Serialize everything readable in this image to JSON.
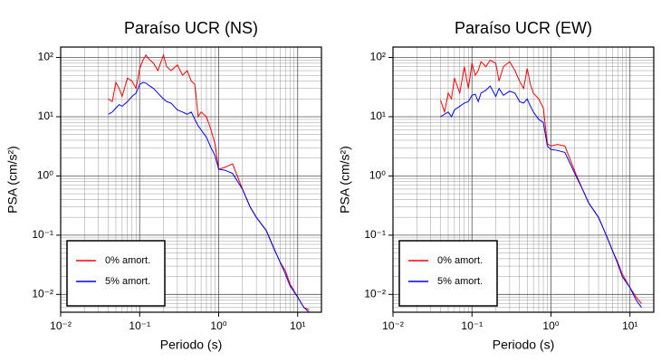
{
  "chart_data": [
    {
      "type": "line",
      "title": "Paraíso UCR (NS)",
      "xlabel": "Periodo (s)",
      "ylabel": "PSA (cm/s²)",
      "log_x": true,
      "log_y": true,
      "grid": true,
      "legend": "lower left",
      "xlim": [
        0.01,
        20
      ],
      "ylim": [
        0.005,
        150
      ],
      "xticks": [
        {
          "value": 0.01,
          "label": "10⁻²"
        },
        {
          "value": 0.1,
          "label": "10⁻¹"
        },
        {
          "value": 1,
          "label": "10⁰"
        },
        {
          "value": 10,
          "label": "10¹"
        }
      ],
      "yticks": [
        {
          "value": 0.01,
          "label": "10⁻²"
        },
        {
          "value": 0.1,
          "label": "10⁻¹"
        },
        {
          "value": 1,
          "label": "10⁰"
        },
        {
          "value": 10,
          "label": "10¹"
        },
        {
          "value": 100,
          "label": "10²"
        }
      ],
      "x": [
        0.04,
        0.045,
        0.05,
        0.055,
        0.06,
        0.07,
        0.08,
        0.09,
        0.1,
        0.11,
        0.12,
        0.13,
        0.15,
        0.17,
        0.2,
        0.22,
        0.25,
        0.3,
        0.35,
        0.4,
        0.45,
        0.5,
        0.55,
        0.6,
        0.7,
        0.8,
        0.9,
        1.0,
        1.2,
        1.5,
        2,
        2.5,
        3,
        4,
        5,
        6,
        7,
        8,
        10,
        12,
        14
      ],
      "series": [
        {
          "name": "0% amort.",
          "color": "#ff0000",
          "values": [
            20,
            18,
            38,
            30,
            22,
            45,
            40,
            30,
            65,
            90,
            110,
            95,
            80,
            60,
            110,
            70,
            60,
            75,
            50,
            60,
            40,
            35,
            10,
            12,
            10,
            6,
            3.5,
            1.3,
            1.4,
            1.6,
            0.6,
            0.3,
            0.2,
            0.12,
            0.06,
            0.035,
            0.025,
            0.015,
            0.009,
            0.006,
            0.0055
          ]
        },
        {
          "name": "5% amort.",
          "color": "#0000ff",
          "values": [
            11,
            12,
            14,
            16,
            15,
            18,
            22,
            25,
            35,
            38,
            37,
            34,
            30,
            25,
            20,
            18,
            17,
            13,
            12,
            11,
            12,
            9,
            7,
            6,
            4.5,
            3,
            2.2,
            1.3,
            1.25,
            1.1,
            0.6,
            0.3,
            0.2,
            0.12,
            0.06,
            0.035,
            0.022,
            0.014,
            0.009,
            0.006,
            0.005
          ]
        }
      ]
    },
    {
      "type": "line",
      "title": "Paraíso UCR (EW)",
      "xlabel": "Periodo (s)",
      "ylabel": "PSA (cm/s²)",
      "log_x": true,
      "log_y": true,
      "grid": true,
      "legend": "lower left",
      "xlim": [
        0.01,
        20
      ],
      "ylim": [
        0.005,
        150
      ],
      "xticks": [
        {
          "value": 0.01,
          "label": "10⁻²"
        },
        {
          "value": 0.1,
          "label": "10⁻¹"
        },
        {
          "value": 1,
          "label": "10⁰"
        },
        {
          "value": 10,
          "label": "10¹"
        }
      ],
      "yticks": [
        {
          "value": 0.01,
          "label": "10⁻²"
        },
        {
          "value": 0.1,
          "label": "10⁻¹"
        },
        {
          "value": 1,
          "label": "10⁰"
        },
        {
          "value": 10,
          "label": "10¹"
        },
        {
          "value": 100,
          "label": "10²"
        }
      ],
      "x": [
        0.04,
        0.045,
        0.05,
        0.055,
        0.06,
        0.07,
        0.08,
        0.09,
        0.1,
        0.11,
        0.12,
        0.13,
        0.15,
        0.17,
        0.2,
        0.22,
        0.25,
        0.3,
        0.35,
        0.4,
        0.45,
        0.5,
        0.55,
        0.6,
        0.7,
        0.8,
        0.9,
        1.0,
        1.2,
        1.5,
        2,
        2.5,
        3,
        4,
        5,
        6,
        7,
        8,
        10,
        12,
        14
      ],
      "series": [
        {
          "name": "0% amort.",
          "color": "#ff0000",
          "values": [
            19,
            12,
            25,
            20,
            45,
            25,
            70,
            30,
            80,
            50,
            60,
            85,
            70,
            90,
            80,
            40,
            70,
            85,
            60,
            40,
            30,
            65,
            35,
            25,
            20,
            14,
            3.5,
            3.2,
            3.4,
            3.2,
            1.2,
            0.6,
            0.35,
            0.2,
            0.1,
            0.055,
            0.035,
            0.022,
            0.013,
            0.009,
            0.007
          ]
        },
        {
          "name": "5% amort.",
          "color": "#0000ff",
          "values": [
            10,
            11,
            12,
            10,
            13,
            15,
            17,
            18,
            23,
            24,
            18,
            25,
            28,
            33,
            22,
            30,
            23,
            27,
            25,
            18,
            17,
            20,
            15,
            12,
            9,
            8,
            3.2,
            2.8,
            2.7,
            2.5,
            1.1,
            0.6,
            0.35,
            0.2,
            0.1,
            0.055,
            0.033,
            0.02,
            0.013,
            0.008,
            0.006
          ]
        }
      ]
    }
  ]
}
